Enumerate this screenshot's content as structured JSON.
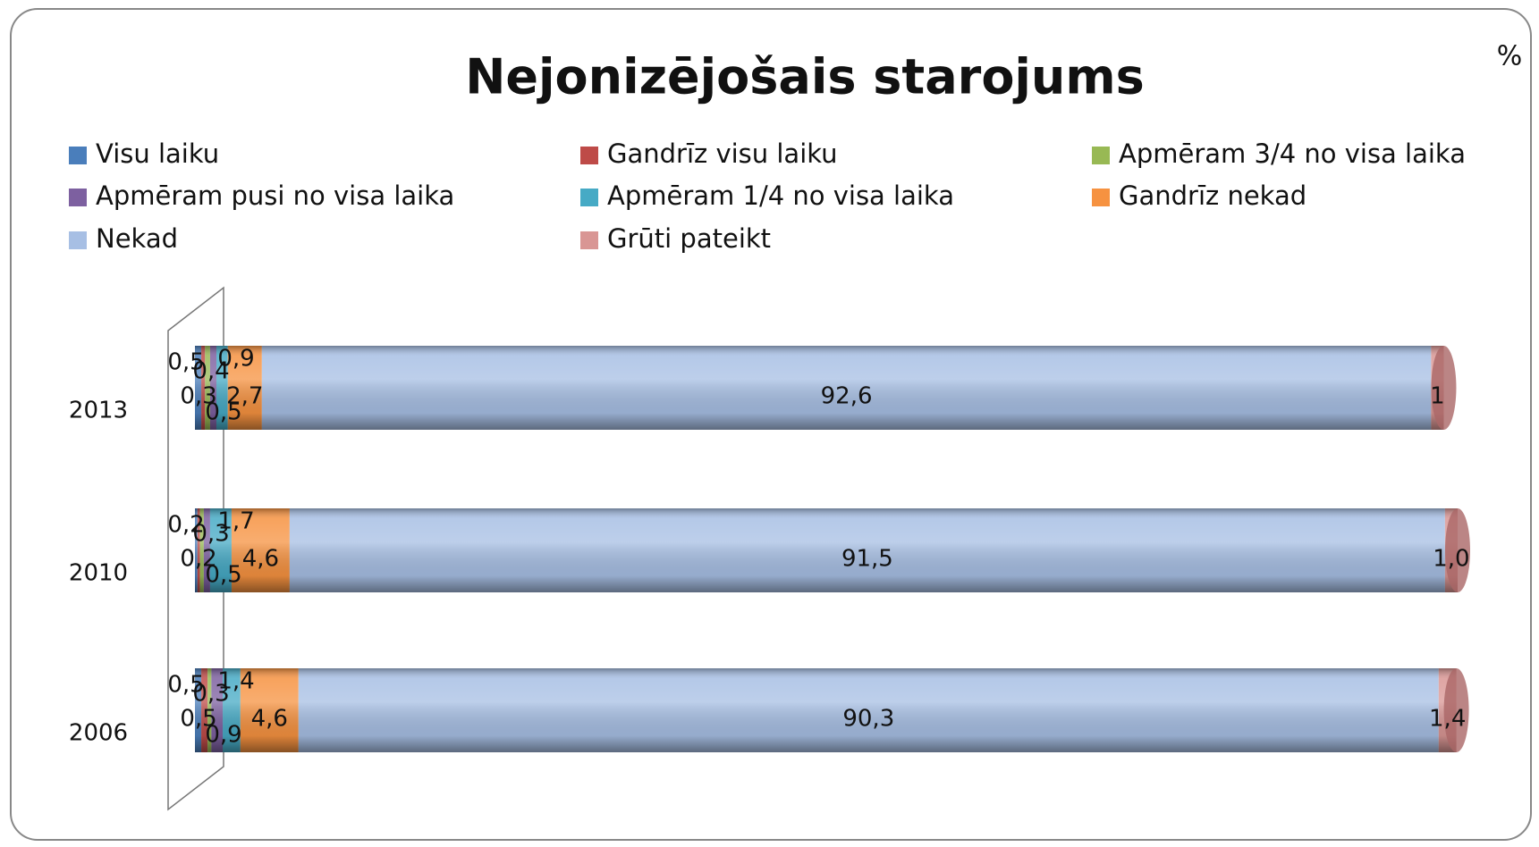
{
  "chart_data": {
    "type": "stacked-bar-horizontal",
    "title": "Nejonizējošais starojums",
    "unit": "%",
    "categories": [
      "2013",
      "2010",
      "2006"
    ],
    "xlim": [
      0,
      100
    ],
    "series": [
      {
        "name": "Visu laiku",
        "color": "#4a7ebb",
        "values": [
          0.5,
          0.2,
          0.5
        ],
        "value_labels": [
          "0,5",
          "0,2",
          "0,5"
        ]
      },
      {
        "name": "Gandrīz visu laiku",
        "color": "#be4b48",
        "values": [
          0.3,
          0.2,
          0.5
        ],
        "value_labels": [
          "0,3",
          "0,2",
          "0,5"
        ]
      },
      {
        "name": "Apmēram 3/4 no visa laika",
        "color": "#98b954",
        "values": [
          0.4,
          0.3,
          0.3
        ],
        "value_labels": [
          "0,4",
          "0,3",
          "0,3"
        ]
      },
      {
        "name": "Apmēram pusi no visa laika",
        "color": "#7d60a0",
        "values": [
          0.5,
          0.5,
          0.9
        ],
        "value_labels": [
          "0,5",
          "0,5",
          "0,9"
        ]
      },
      {
        "name": "Apmēram 1/4 no visa laika",
        "color": "#46aac5",
        "values": [
          0.9,
          1.7,
          1.4
        ],
        "value_labels": [
          "0,9",
          "1,7",
          "1,4"
        ]
      },
      {
        "name": "Gandrīz nekad",
        "color": "#f69240",
        "values": [
          2.7,
          4.6,
          4.6
        ],
        "value_labels": [
          "2,7",
          "4,6",
          "4,6"
        ]
      },
      {
        "name": "Nekad",
        "color": "#a7bfe4",
        "values": [
          92.6,
          91.5,
          90.3
        ],
        "value_labels": [
          "92,6",
          "91,5",
          "90,3"
        ]
      },
      {
        "name": "Grūti pateikt",
        "color": "#d99694",
        "values": [
          1,
          1.0,
          1.4
        ],
        "value_labels": [
          "1",
          "1,0",
          "1,4"
        ]
      }
    ]
  }
}
